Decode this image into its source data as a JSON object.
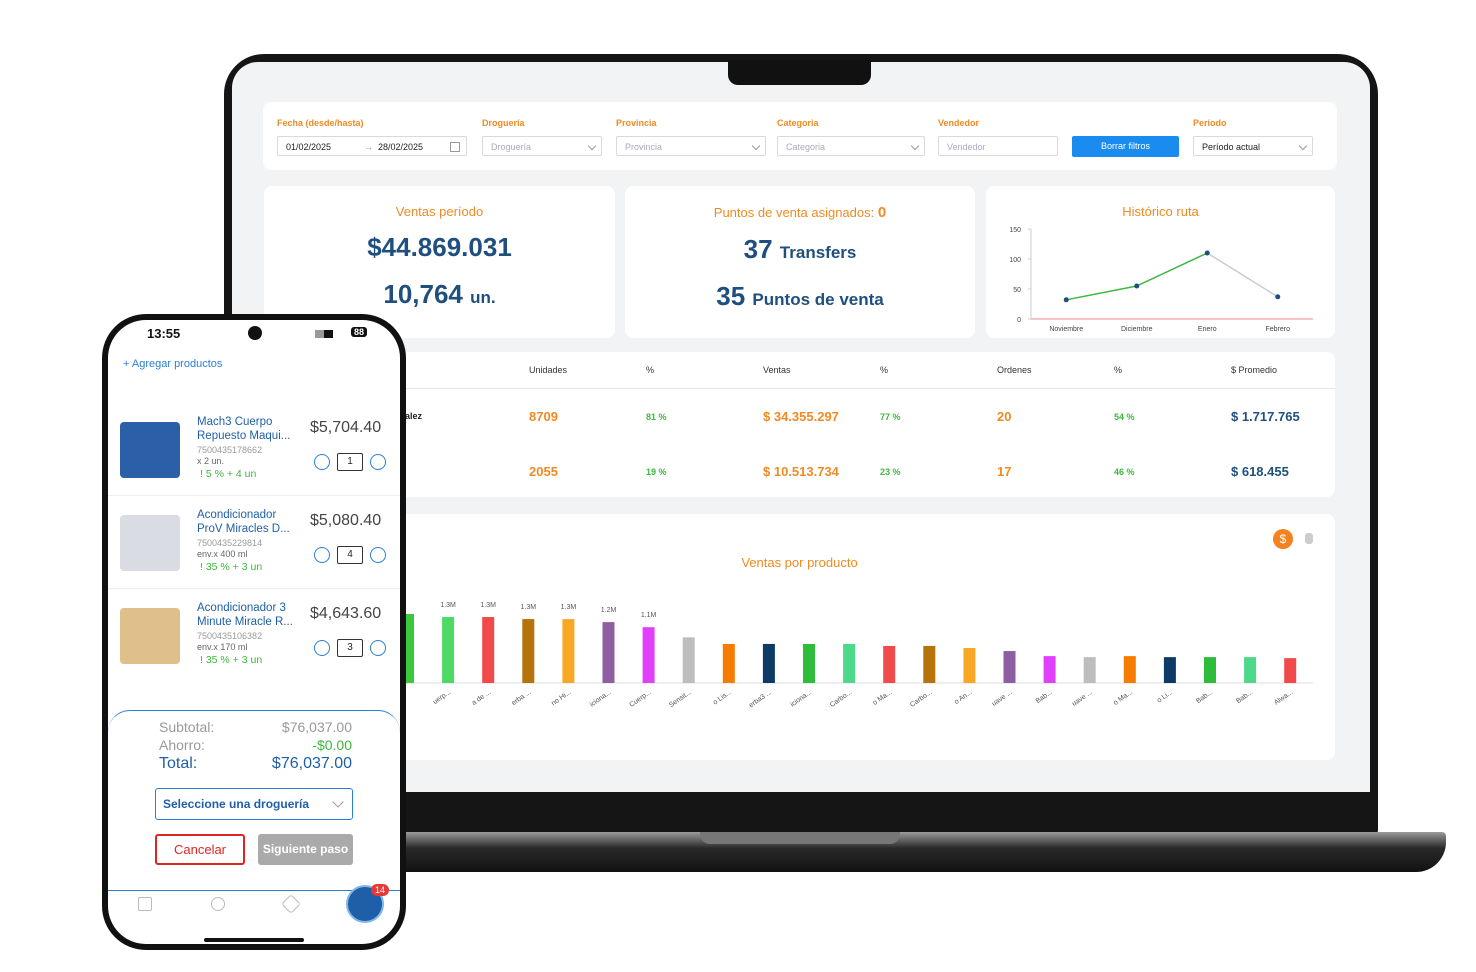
{
  "filters": {
    "fecha": {
      "label": "Fecha (desde/hasta)",
      "from": "01/02/2025",
      "to": "28/02/2025"
    },
    "drogueria": {
      "label": "Droguería",
      "placeholder": "Droguería"
    },
    "provincia": {
      "label": "Provincia",
      "placeholder": "Provincia"
    },
    "categoria": {
      "label": "Categoria",
      "placeholder": "Categoria"
    },
    "vendedor": {
      "label": "Vendedor",
      "placeholder": "Vendedor"
    },
    "button": "Borrar filtros",
    "periodo": {
      "label": "Período",
      "value": "Período actual"
    }
  },
  "kpis": {
    "ventas": {
      "title": "Ventas período",
      "amount": "$44.869.031",
      "units": "10,764",
      "units_suffix": "un."
    },
    "puntos": {
      "title": "Puntos de venta asignados:",
      "assigned": "0",
      "transfers": "37",
      "transfers_label": "Transfers",
      "puntos": "35",
      "puntos_label": "Puntos de venta"
    }
  },
  "table": {
    "headers": [
      "Unidades",
      "%",
      "Ventas",
      "%",
      "Ordenes",
      "%",
      "$ Promedio"
    ],
    "rows": [
      {
        "name": "alez",
        "cells": [
          "8709",
          "81 %",
          "$ 34.355.297",
          "77 %",
          "20",
          "54 %",
          "$ 1.717.765"
        ]
      },
      {
        "name": null,
        "cells": [
          "2055",
          "19 %",
          "$ 10.513.734",
          "23 %",
          "17",
          "46 %",
          "$ 618.455"
        ]
      }
    ]
  },
  "chart_data": [
    {
      "type": "line",
      "title": "Histórico ruta",
      "categories": [
        "Noviembre",
        "Diciembre",
        "Enero",
        "Febrero"
      ],
      "values": [
        32,
        55,
        110,
        37
      ],
      "color": "#3cb83c",
      "ylim": [
        0,
        150
      ],
      "yticks": [
        0,
        50,
        100,
        150
      ]
    },
    {
      "type": "bar",
      "title": "Ventas por producto",
      "currency_button": "$",
      "categories": [
        null,
        "uerp...",
        "a de ...",
        "erba ...",
        "no Hi...",
        "iciona...",
        "Cuerp...",
        "Sensit...",
        "o Lis...",
        "erba3 ...",
        "iciona...",
        "Carbo...",
        "o Ma...",
        "Carbo...",
        "o An...",
        "uave ...",
        "Bab...",
        "uave ...",
        "o Ma...",
        "o Li...",
        "Bab...",
        "Bab...",
        "Alwa..."
      ],
      "values": [
        1.36,
        1.3,
        1.3,
        1.26,
        1.26,
        1.2,
        1.1,
        0.9,
        0.77,
        0.77,
        0.77,
        0.77,
        0.73,
        0.73,
        0.69,
        0.63,
        0.53,
        0.51,
        0.53,
        0.51,
        0.51,
        0.51,
        0.49
      ],
      "value_labels": [
        null,
        "1.3M",
        "1.3M",
        "1.3M",
        "1.3M",
        "1.2M",
        "1.1M",
        null,
        null,
        null,
        null,
        null,
        null,
        null,
        null,
        null,
        null,
        null,
        null,
        null,
        null,
        null,
        null
      ],
      "colors": [
        "#3cc83c",
        "#4cd964",
        "#f04a4a",
        "#b5730a",
        "#f9a825",
        "#8e5ea2",
        "#e040fb",
        "#bdbdbd",
        "#f57c00",
        "#0d3b66",
        "#2ebd3a",
        "#4cd98a",
        "#f04a4a",
        "#b5730a",
        "#f9a825",
        "#8e5ea2",
        "#e040fb",
        "#bdbdbd",
        "#f57c00",
        "#0d3b66",
        "#2ebd3a",
        "#4cd98a",
        "#f04a4a"
      ]
    }
  ],
  "phone": {
    "time": "13:55",
    "battery": "88",
    "add": "+ Agregar productos",
    "products": [
      {
        "name1": "Mach3 Cuerpo",
        "name2": "Repuesto Maqui...",
        "sku": "7500435178662",
        "pack": "x 2 un.",
        "promo": "! 5 % + 4 un",
        "price": "$5,704.40",
        "qty": "1"
      },
      {
        "name1": "Acondicionador",
        "name2": "ProV Miracles  D...",
        "sku": "7500435229814",
        "pack": "env.x 400 ml",
        "promo": "! 35 % + 3 un",
        "price": "$5,080.40",
        "qty": "4"
      },
      {
        "name1": "Acondicionador 3",
        "name2": "Minute Miracle R...",
        "sku": "7500435106382",
        "pack": "env.x 170 ml",
        "promo": "! 35 % + 3 un",
        "price": "$4,643.60",
        "qty": "3"
      }
    ],
    "subtotal_label": "Subtotal:",
    "subtotal": "$76,037.00",
    "ahorro_label": "Ahorro:",
    "ahorro": "-$0.00",
    "total_label": "Total:",
    "total": "$76,037.00",
    "select": "Seleccione una droguería",
    "cancel": "Cancelar",
    "next": "Siguiente paso",
    "cart_badge": "14"
  }
}
